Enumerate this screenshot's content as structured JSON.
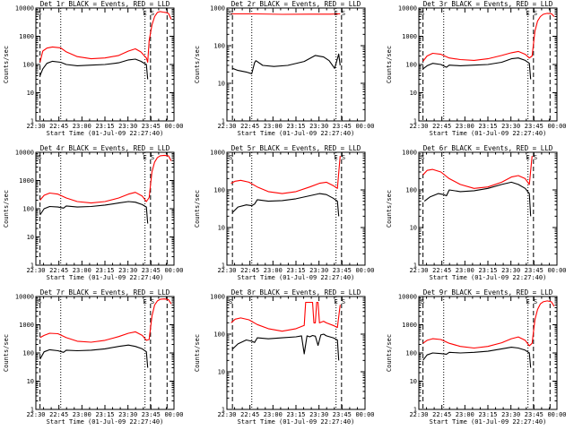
{
  "layout": {
    "columns": 3,
    "rows": 3
  },
  "colors": {
    "events": "#000000",
    "lld": "#ff0000",
    "background": "#ffffff",
    "axes": "#000000"
  },
  "x_tick_labels": [
    "22:30",
    "22:45",
    "23:00",
    "23:15",
    "23:30",
    "23:45",
    "00:00"
  ],
  "y_tick_labels": [
    "1",
    "10",
    "100",
    "1000",
    "10000"
  ],
  "chart_data": [
    {
      "type": "line",
      "title": "Det 1r  BLACK = Events, RED = LLD",
      "xlabel": "Start Time (01-Jul-09 22:27:40)",
      "ylabel": "Counts/sec",
      "yscale": "log",
      "ylim": [
        1,
        10000
      ],
      "xlim": [
        0,
        100
      ],
      "x_tick_labels": [
        "22:30",
        "22:45",
        "23:00",
        "23:15",
        "23:30",
        "23:45",
        "00:00"
      ],
      "y_tick_labels": [
        "1",
        "10",
        "100",
        "1000",
        "10000"
      ],
      "corner_labels": {
        "left": "S",
        "right": "E S"
      },
      "dashed_markers": [
        3,
        83,
        95
      ],
      "dotted_markers": [
        18,
        79
      ],
      "series": [
        {
          "x": [
            3,
            5,
            8,
            12,
            18,
            22,
            30,
            40,
            50,
            60,
            67,
            72,
            76,
            80,
            81,
            82,
            84,
            86,
            88,
            90,
            92,
            94,
            96,
            98
          ],
          "values": [
            120,
            300,
            380,
            420,
            390,
            280,
            190,
            160,
            170,
            210,
            300,
            360,
            280,
            170,
            120,
            700,
            2500,
            5000,
            7000,
            7500,
            7200,
            7000,
            6500,
            4000
          ]
        },
        {
          "x": [
            3,
            5,
            8,
            12,
            18,
            22,
            30,
            40,
            50,
            60,
            67,
            72,
            76,
            80,
            81
          ],
          "values": [
            40,
            70,
            110,
            130,
            120,
            100,
            90,
            95,
            100,
            115,
            145,
            155,
            130,
            100,
            30
          ]
        }
      ]
    },
    {
      "type": "line",
      "title": "Det 2r  BLACK = Events, RED = LLD",
      "xlabel": "Start Time (01-Jul-09 22:27:40)",
      "ylabel": "Counts/sec",
      "yscale": "log",
      "ylim": [
        1,
        1000
      ],
      "xlim": [
        0,
        100
      ],
      "x_tick_labels": [
        "22:30",
        "22:45",
        "23:00",
        "23:15",
        "23:30",
        "23:45",
        "00:00"
      ],
      "y_tick_labels": [
        "1",
        "10",
        "100",
        "1000"
      ],
      "corner_labels": {
        "left": "S",
        "right": "E S"
      },
      "dashed_markers": [
        4,
        83
      ],
      "dotted_markers": [
        18,
        79
      ],
      "series": [
        {
          "x": [
            3,
            8,
            20,
            40,
            60,
            75,
            81,
            82
          ],
          "values": [
            700,
            700,
            700,
            680,
            690,
            690,
            700,
            700
          ]
        },
        {
          "x": [
            4,
            8,
            14,
            18,
            20,
            21,
            26,
            34,
            44,
            56,
            64,
            70,
            74,
            78,
            81,
            82
          ],
          "values": [
            25,
            22,
            20,
            18,
            35,
            40,
            30,
            28,
            30,
            38,
            55,
            50,
            40,
            25,
            60,
            30
          ]
        }
      ]
    },
    {
      "type": "line",
      "title": "Det 3r  BLACK = Events, RED = LLD",
      "xlabel": "Start Time (01-Jul-09 22:27:40)",
      "ylabel": "Counts/sec",
      "yscale": "log",
      "ylim": [
        1,
        10000
      ],
      "xlim": [
        0,
        100
      ],
      "x_tick_labels": [
        "22:30",
        "22:45",
        "23:00",
        "23:15",
        "23:30",
        "23:45",
        "00:00"
      ],
      "y_tick_labels": [
        "1",
        "10",
        "100",
        "1000",
        "10000"
      ],
      "corner_labels": {
        "left": "S",
        "right": "E S"
      },
      "dashed_markers": [
        3,
        83,
        95
      ],
      "dotted_markers": [
        18,
        79
      ],
      "series": [
        {
          "x": [
            3,
            6,
            10,
            16,
            22,
            30,
            40,
            50,
            60,
            67,
            72,
            77,
            80,
            82,
            84,
            86,
            88,
            90,
            93,
            96,
            98
          ],
          "values": [
            130,
            200,
            250,
            230,
            170,
            150,
            140,
            160,
            210,
            260,
            290,
            230,
            170,
            200,
            1500,
            3500,
            5000,
            6000,
            6500,
            6300,
            5000
          ]
        },
        {
          "x": [
            3,
            6,
            10,
            16,
            20,
            22,
            30,
            40,
            50,
            60,
            67,
            72,
            77,
            80,
            81
          ],
          "values": [
            70,
            90,
            110,
            100,
            80,
            95,
            90,
            95,
            100,
            120,
            160,
            170,
            140,
            110,
            30
          ]
        }
      ]
    },
    {
      "type": "line",
      "title": "Det 4r  BLACK = Events, RED = LLD",
      "xlabel": "Start Time (01-Jul-09 22:27:40)",
      "ylabel": "Counts/sec",
      "yscale": "log",
      "ylim": [
        1,
        10000
      ],
      "xlim": [
        0,
        100
      ],
      "x_tick_labels": [
        "22:30",
        "22:45",
        "23:00",
        "23:15",
        "23:30",
        "23:45",
        "00:00"
      ],
      "y_tick_labels": [
        "1",
        "10",
        "100",
        "1000",
        "10000"
      ],
      "corner_labels": {
        "left": "S",
        "right": "E S"
      },
      "dashed_markers": [
        3,
        83,
        95
      ],
      "dotted_markers": [
        18,
        79
      ],
      "series": [
        {
          "x": [
            3,
            6,
            10,
            16,
            22,
            30,
            40,
            50,
            60,
            67,
            72,
            77,
            80,
            82,
            84,
            86,
            88,
            90,
            93,
            96,
            98
          ],
          "values": [
            200,
            300,
            360,
            330,
            240,
            180,
            160,
            180,
            240,
            330,
            380,
            280,
            180,
            250,
            2000,
            4500,
            6500,
            7500,
            7800,
            7500,
            5000
          ]
        },
        {
          "x": [
            3,
            6,
            10,
            16,
            20,
            22,
            30,
            40,
            50,
            60,
            67,
            72,
            77,
            80,
            81
          ],
          "values": [
            60,
            100,
            120,
            115,
            105,
            125,
            115,
            120,
            135,
            160,
            180,
            170,
            140,
            115,
            30
          ]
        }
      ]
    },
    {
      "type": "line",
      "title": "Det 5r  BLACK = Events, RED = LLD",
      "xlabel": "Start Time (01-Jul-09 22:27:40)",
      "ylabel": "Counts/sec",
      "yscale": "log",
      "ylim": [
        1,
        1000
      ],
      "xlim": [
        0,
        100
      ],
      "x_tick_labels": [
        "22:30",
        "22:45",
        "23:00",
        "23:15",
        "23:30",
        "23:45",
        "00:00"
      ],
      "y_tick_labels": [
        "1",
        "10",
        "100",
        "1000"
      ],
      "corner_labels": {
        "left": "S",
        "right": "E S"
      },
      "dashed_markers": [
        4,
        83
      ],
      "dotted_markers": [
        18,
        79
      ],
      "series": [
        {
          "x": [
            3,
            6,
            10,
            16,
            22,
            30,
            40,
            50,
            60,
            67,
            72,
            77,
            80,
            82
          ],
          "values": [
            150,
            170,
            180,
            160,
            120,
            90,
            80,
            90,
            120,
            150,
            160,
            130,
            110,
            800
          ]
        },
        {
          "x": [
            4,
            8,
            14,
            18,
            20,
            22,
            30,
            40,
            50,
            60,
            67,
            72,
            77,
            80,
            81
          ],
          "values": [
            25,
            35,
            40,
            38,
            42,
            55,
            50,
            52,
            58,
            70,
            80,
            75,
            60,
            50,
            20
          ]
        }
      ]
    },
    {
      "type": "line",
      "title": "Det 6r  BLACK = Events, RED = LLD",
      "xlabel": "Start Time (01-Jul-09 22:27:40)",
      "ylabel": "Counts/sec",
      "yscale": "log",
      "ylim": [
        1,
        1000
      ],
      "xlim": [
        0,
        100
      ],
      "x_tick_labels": [
        "22:30",
        "22:45",
        "23:00",
        "23:15",
        "23:30",
        "23:45",
        "00:00"
      ],
      "y_tick_labels": [
        "1",
        "10",
        "100",
        "1000"
      ],
      "corner_labels": {
        "left": "S",
        "right": "E S"
      },
      "dashed_markers": [
        3,
        83
      ],
      "dotted_markers": [
        18,
        79
      ],
      "series": [
        {
          "x": [
            3,
            6,
            10,
            16,
            22,
            30,
            40,
            50,
            60,
            67,
            72,
            77,
            80,
            82
          ],
          "values": [
            250,
            330,
            350,
            300,
            200,
            140,
            110,
            120,
            160,
            220,
            240,
            200,
            140,
            800
          ]
        },
        {
          "x": [
            4,
            8,
            14,
            18,
            20,
            22,
            30,
            40,
            50,
            60,
            67,
            72,
            77,
            80,
            81
          ],
          "values": [
            50,
            65,
            80,
            75,
            70,
            100,
            90,
            95,
            110,
            140,
            160,
            140,
            110,
            80,
            20
          ]
        }
      ]
    },
    {
      "type": "line",
      "title": "Det 7r  BLACK = Events, RED = LLD",
      "xlabel": "Start Time (01-Jul-09 22:27:40)",
      "ylabel": "Counts/sec",
      "yscale": "log",
      "ylim": [
        1,
        10000
      ],
      "xlim": [
        0,
        100
      ],
      "x_tick_labels": [
        "22:30",
        "22:45",
        "23:00",
        "23:15",
        "23:30",
        "23:45",
        "00:00"
      ],
      "y_tick_labels": [
        "1",
        "10",
        "100",
        "1000",
        "10000"
      ],
      "corner_labels": {
        "left": "S",
        "right": "E S"
      },
      "dashed_markers": [
        3,
        83,
        95
      ],
      "dotted_markers": [
        18,
        79
      ],
      "series": [
        {
          "x": [
            3,
            6,
            10,
            16,
            22,
            30,
            40,
            50,
            60,
            67,
            72,
            77,
            80,
            82,
            84,
            86,
            88,
            90,
            93,
            96,
            98
          ],
          "values": [
            350,
            420,
            500,
            480,
            350,
            260,
            240,
            280,
            380,
            500,
            560,
            420,
            280,
            300,
            2000,
            5000,
            7000,
            8000,
            8200,
            7800,
            5500
          ]
        },
        {
          "x": [
            3,
            6,
            10,
            16,
            20,
            22,
            30,
            40,
            50,
            60,
            67,
            72,
            77,
            80,
            81
          ],
          "values": [
            60,
            110,
            130,
            120,
            105,
            125,
            120,
            125,
            140,
            170,
            190,
            170,
            140,
            110,
            30
          ]
        }
      ]
    },
    {
      "type": "line",
      "title": "Det 8r  BLACK = Events, RED = LLD",
      "xlabel": "Start Time (01-Jul-09 22:27:40)",
      "ylabel": "Counts/sec",
      "yscale": "log",
      "ylim": [
        1,
        1000
      ],
      "xlim": [
        0,
        100
      ],
      "x_tick_labels": [
        "22:30",
        "22:45",
        "23:00",
        "23:15",
        "23:30",
        "23:45",
        "00:00"
      ],
      "y_tick_labels": [
        "1",
        "10",
        "100",
        "1000"
      ],
      "corner_labels": {
        "left": "S",
        "right": "E S"
      },
      "dashed_markers": [
        4,
        83
      ],
      "dotted_markers": [
        18,
        79
      ],
      "series": [
        {
          "x": [
            3,
            6,
            10,
            16,
            22,
            30,
            40,
            50,
            56,
            57,
            60,
            62,
            63,
            64,
            65,
            66,
            67,
            70,
            72,
            77,
            80,
            82
          ],
          "values": [
            200,
            250,
            270,
            240,
            180,
            140,
            120,
            140,
            170,
            700,
            700,
            700,
            200,
            200,
            700,
            700,
            200,
            220,
            200,
            170,
            150,
            600
          ]
        },
        {
          "x": [
            4,
            8,
            14,
            18,
            20,
            22,
            30,
            40,
            50,
            54,
            56,
            58,
            60,
            62,
            64,
            66,
            68,
            70,
            72,
            77,
            80,
            81
          ],
          "values": [
            40,
            55,
            70,
            65,
            60,
            80,
            75,
            80,
            85,
            90,
            30,
            90,
            85,
            92,
            88,
            50,
            95,
            100,
            90,
            80,
            70,
            20
          ]
        }
      ]
    },
    {
      "type": "line",
      "title": "Det 9r  BLACK = Events, RED = LLD",
      "xlabel": "Start Time (01-Jul-09 22:27:40)",
      "ylabel": "Counts/sec",
      "yscale": "log",
      "ylim": [
        1,
        10000
      ],
      "xlim": [
        0,
        100
      ],
      "x_tick_labels": [
        "22:30",
        "22:45",
        "23:00",
        "23:15",
        "23:30",
        "23:45",
        "00:00"
      ],
      "y_tick_labels": [
        "1",
        "10",
        "100",
        "1000",
        "10000"
      ],
      "corner_labels": {
        "left": "S",
        "right": "E S"
      },
      "dashed_markers": [
        3,
        83,
        95
      ],
      "dotted_markers": [
        18,
        79
      ],
      "series": [
        {
          "x": [
            3,
            6,
            10,
            16,
            22,
            30,
            40,
            50,
            60,
            67,
            72,
            77,
            80,
            82,
            84,
            86,
            88,
            90,
            93,
            96,
            98
          ],
          "values": [
            220,
            280,
            320,
            300,
            220,
            170,
            150,
            170,
            230,
            320,
            370,
            280,
            180,
            220,
            1500,
            3500,
            5500,
            6500,
            7000,
            6500,
            4500
          ]
        },
        {
          "x": [
            3,
            6,
            10,
            16,
            20,
            22,
            30,
            40,
            50,
            60,
            67,
            72,
            77,
            80,
            81
          ],
          "values": [
            55,
            85,
            100,
            95,
            90,
            105,
            100,
            105,
            115,
            140,
            160,
            150,
            125,
            100,
            30
          ]
        }
      ]
    }
  ]
}
